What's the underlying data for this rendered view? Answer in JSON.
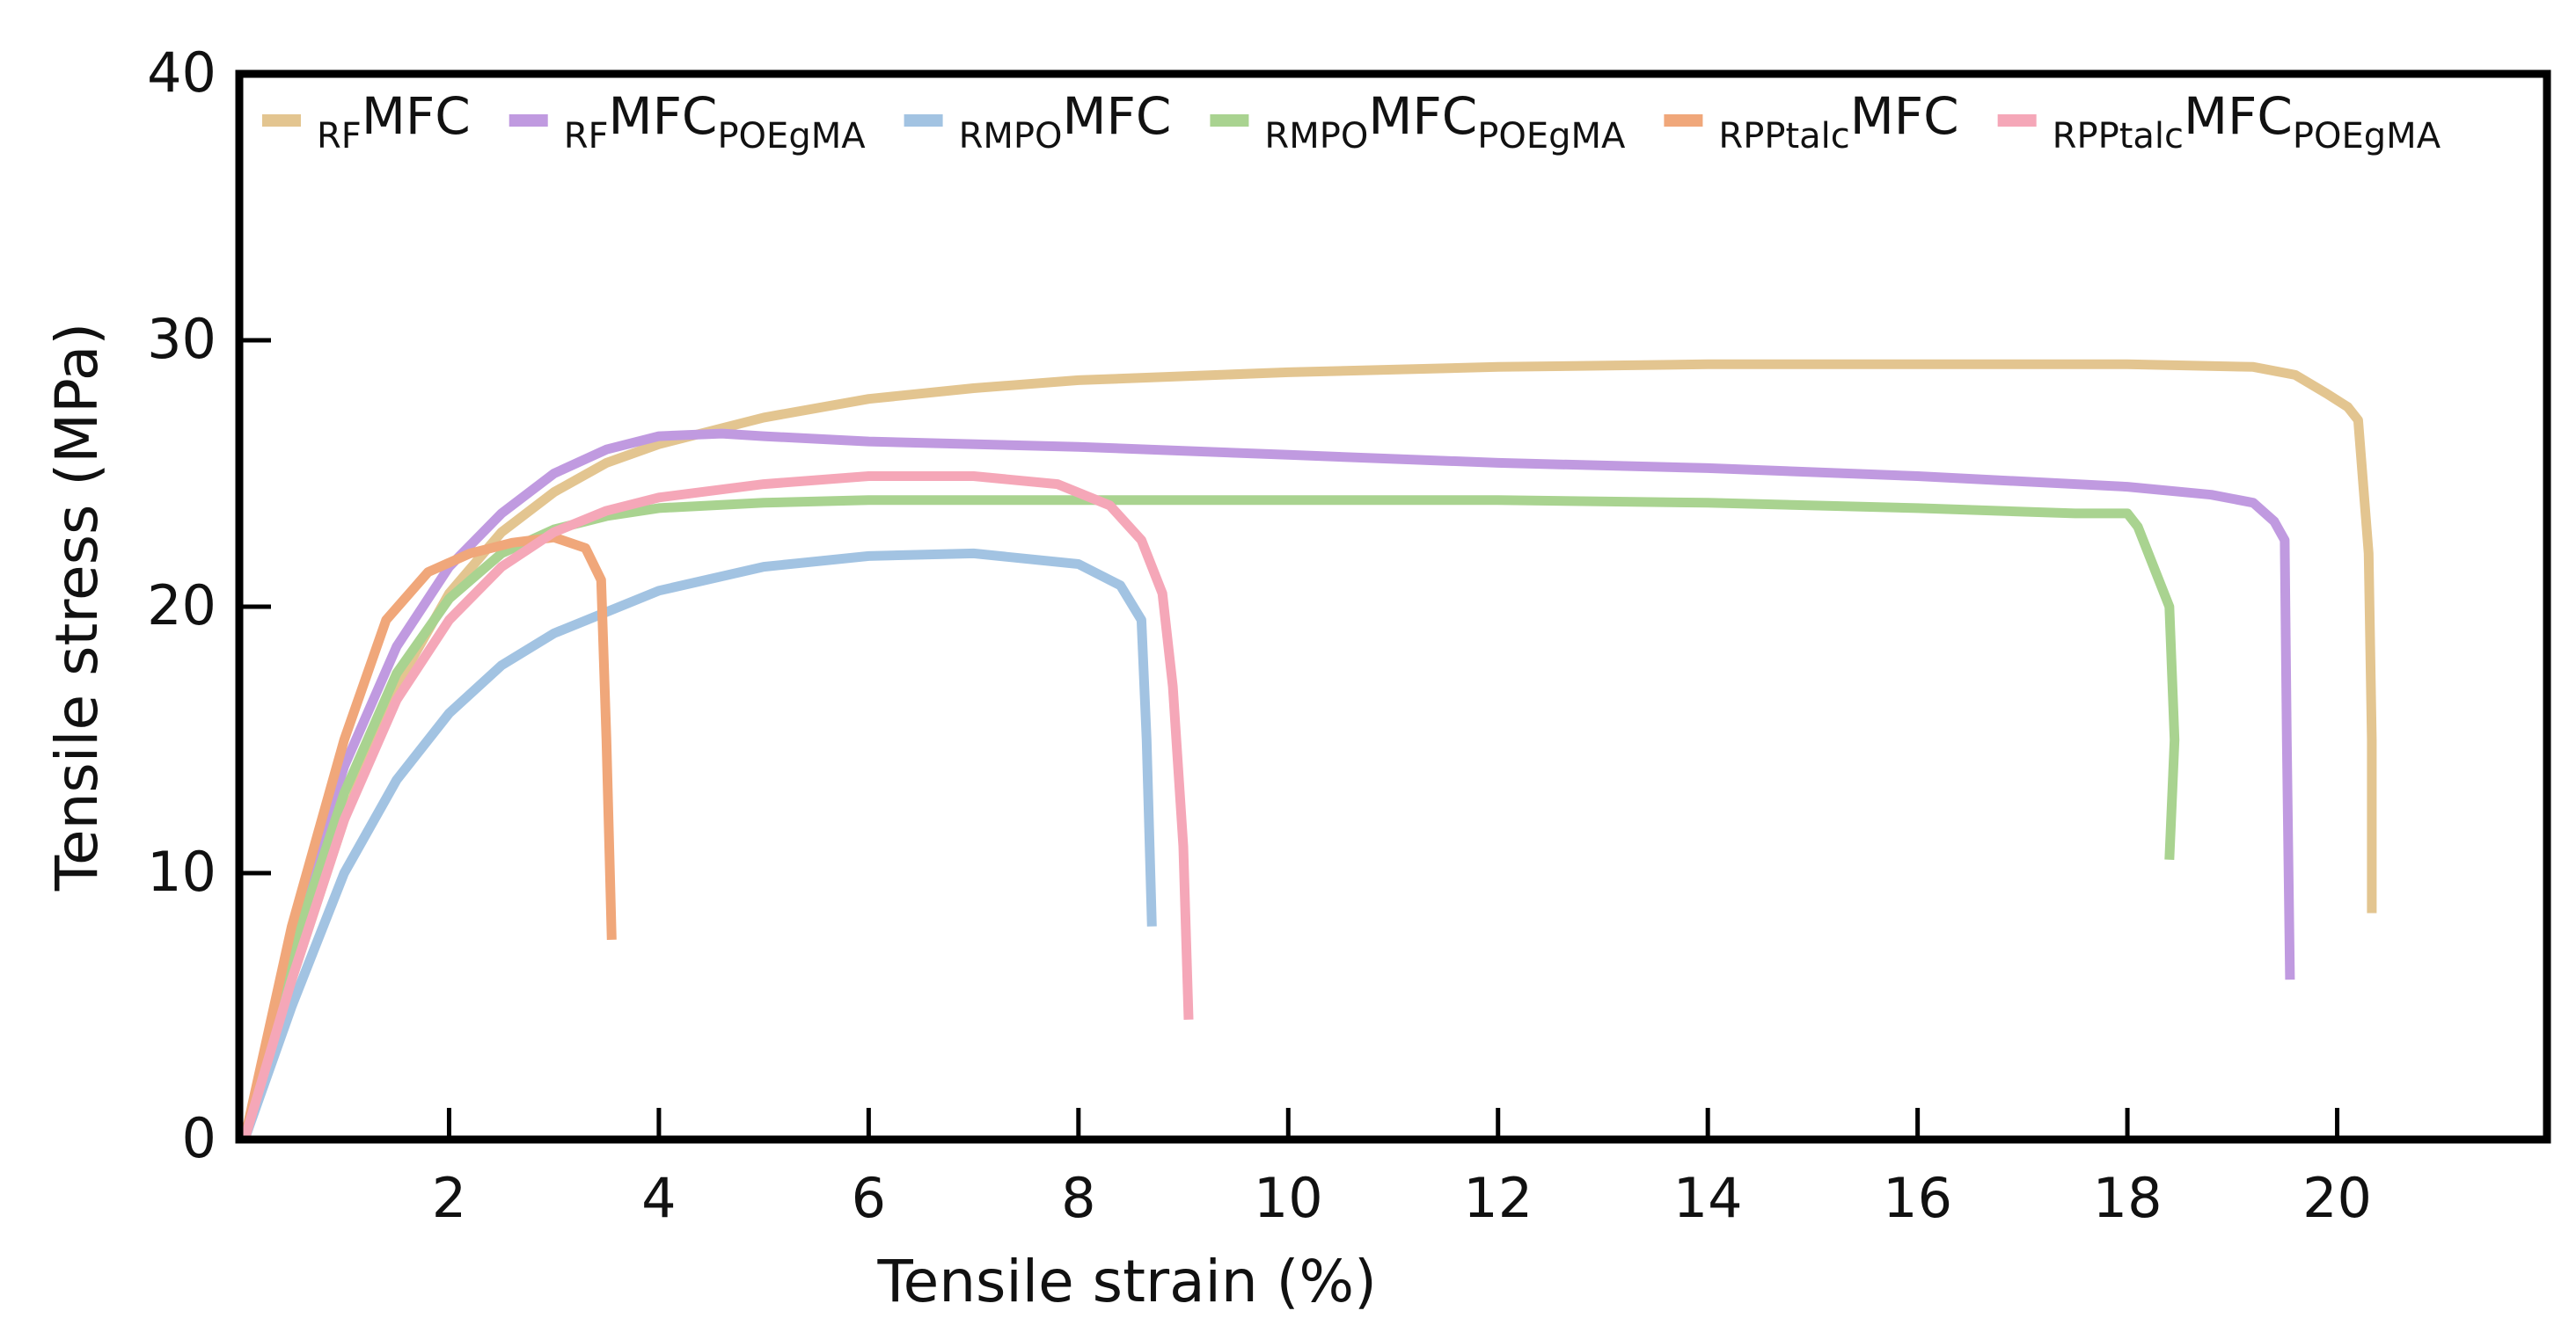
{
  "chart_data": {
    "type": "line",
    "title": "",
    "xlabel": "Tensile strain (%)",
    "ylabel": "Tensile stress (MPa)",
    "xlim": [
      0.0,
      22.0
    ],
    "ylim": [
      0,
      40
    ],
    "x_ticks": [
      2,
      4,
      6,
      8,
      10,
      12,
      14,
      16,
      18,
      20
    ],
    "y_ticks": [
      0,
      10,
      20,
      30,
      40
    ],
    "grid": false,
    "legend_position": "top",
    "series": [
      {
        "name": "RFMFC",
        "legend_pre": "RF",
        "legend_main": "MFC",
        "legend_post": "",
        "color": "#e3c590",
        "points": [
          [
            0.05,
            0
          ],
          [
            0.5,
            6
          ],
          [
            1.0,
            12
          ],
          [
            1.5,
            17
          ],
          [
            2.0,
            20.5
          ],
          [
            2.5,
            22.8
          ],
          [
            3.0,
            24.3
          ],
          [
            3.5,
            25.4
          ],
          [
            4.0,
            26.1
          ],
          [
            5.0,
            27.1
          ],
          [
            6.0,
            27.8
          ],
          [
            7.0,
            28.2
          ],
          [
            8.0,
            28.5
          ],
          [
            10.0,
            28.8
          ],
          [
            12.0,
            29.0
          ],
          [
            14.0,
            29.1
          ],
          [
            16.0,
            29.1
          ],
          [
            18.0,
            29.1
          ],
          [
            19.2,
            29.0
          ],
          [
            19.6,
            28.7
          ],
          [
            19.9,
            28.0
          ],
          [
            20.1,
            27.5
          ],
          [
            20.2,
            27.0
          ],
          [
            20.3,
            22.0
          ],
          [
            20.33,
            15.0
          ],
          [
            20.33,
            8.5
          ]
        ]
      },
      {
        "name": "RFMFCPOEgMA",
        "legend_pre": "RF",
        "legend_main": "MFC",
        "legend_post": "POEgMA",
        "color": "#c09ae0",
        "points": [
          [
            0.05,
            0
          ],
          [
            0.3,
            4
          ],
          [
            0.6,
            9
          ],
          [
            1.0,
            14
          ],
          [
            1.5,
            18.5
          ],
          [
            2.0,
            21.5
          ],
          [
            2.5,
            23.5
          ],
          [
            3.0,
            25.0
          ],
          [
            3.5,
            25.9
          ],
          [
            4.0,
            26.4
          ],
          [
            4.6,
            26.5
          ],
          [
            5.0,
            26.4
          ],
          [
            6.0,
            26.2
          ],
          [
            8.0,
            26.0
          ],
          [
            10.0,
            25.7
          ],
          [
            12.0,
            25.4
          ],
          [
            14.0,
            25.2
          ],
          [
            16.0,
            24.9
          ],
          [
            18.0,
            24.5
          ],
          [
            18.8,
            24.2
          ],
          [
            19.2,
            23.9
          ],
          [
            19.4,
            23.2
          ],
          [
            19.5,
            22.5
          ],
          [
            19.52,
            15.0
          ],
          [
            19.55,
            6.0
          ]
        ]
      },
      {
        "name": "RMPOMFC",
        "legend_pre": "RMPO",
        "legend_main": "MFC",
        "legend_post": "",
        "color": "#a2c3e2",
        "points": [
          [
            0.05,
            0
          ],
          [
            0.5,
            5
          ],
          [
            1.0,
            10
          ],
          [
            1.5,
            13.5
          ],
          [
            2.0,
            16
          ],
          [
            2.5,
            17.8
          ],
          [
            3.0,
            19.0
          ],
          [
            4.0,
            20.6
          ],
          [
            5.0,
            21.5
          ],
          [
            6.0,
            21.9
          ],
          [
            7.0,
            22.0
          ],
          [
            8.0,
            21.6
          ],
          [
            8.4,
            20.8
          ],
          [
            8.6,
            19.5
          ],
          [
            8.65,
            15.0
          ],
          [
            8.7,
            8.0
          ]
        ]
      },
      {
        "name": "RMPOMFCPOEgMA",
        "legend_pre": "RMPO",
        "legend_main": "MFC",
        "legend_post": "POEgMA",
        "color": "#a9d390",
        "points": [
          [
            0.05,
            0
          ],
          [
            0.5,
            7
          ],
          [
            1.0,
            13
          ],
          [
            1.5,
            17.5
          ],
          [
            2.0,
            20.3
          ],
          [
            2.5,
            22.0
          ],
          [
            3.0,
            22.9
          ],
          [
            3.5,
            23.4
          ],
          [
            4.0,
            23.7
          ],
          [
            5.0,
            23.9
          ],
          [
            6.0,
            24.0
          ],
          [
            8.0,
            24.0
          ],
          [
            10.0,
            24.0
          ],
          [
            12.0,
            24.0
          ],
          [
            14.0,
            23.9
          ],
          [
            16.0,
            23.7
          ],
          [
            17.5,
            23.5
          ],
          [
            18.0,
            23.5
          ],
          [
            18.1,
            23.0
          ],
          [
            18.2,
            22.0
          ],
          [
            18.4,
            20.0
          ],
          [
            18.45,
            15.0
          ],
          [
            18.4,
            10.5
          ]
        ]
      },
      {
        "name": "RPPtalcMFC",
        "legend_pre": "RPPtalc",
        "legend_main": "MFC",
        "legend_post": "",
        "color": "#f0a77a",
        "points": [
          [
            0.05,
            0
          ],
          [
            0.5,
            8
          ],
          [
            1.0,
            15
          ],
          [
            1.4,
            19.5
          ],
          [
            1.8,
            21.3
          ],
          [
            2.2,
            22.0
          ],
          [
            2.6,
            22.4
          ],
          [
            3.0,
            22.6
          ],
          [
            3.3,
            22.2
          ],
          [
            3.45,
            21.0
          ],
          [
            3.5,
            15.0
          ],
          [
            3.55,
            7.5
          ]
        ]
      },
      {
        "name": "RPPtalcMFCPOEgMA",
        "legend_pre": "RPPtalc",
        "legend_main": "MFC",
        "legend_post": "POEgMA",
        "color": "#f5a7b8",
        "points": [
          [
            0.05,
            0
          ],
          [
            0.5,
            6
          ],
          [
            1.0,
            12
          ],
          [
            1.5,
            16.5
          ],
          [
            2.0,
            19.5
          ],
          [
            2.5,
            21.5
          ],
          [
            3.0,
            22.8
          ],
          [
            3.5,
            23.6
          ],
          [
            4.0,
            24.1
          ],
          [
            5.0,
            24.6
          ],
          [
            6.0,
            24.9
          ],
          [
            7.0,
            24.9
          ],
          [
            7.8,
            24.6
          ],
          [
            8.3,
            23.8
          ],
          [
            8.6,
            22.5
          ],
          [
            8.8,
            20.5
          ],
          [
            8.9,
            17.0
          ],
          [
            9.0,
            11.0
          ],
          [
            9.05,
            4.5
          ]
        ]
      }
    ]
  }
}
